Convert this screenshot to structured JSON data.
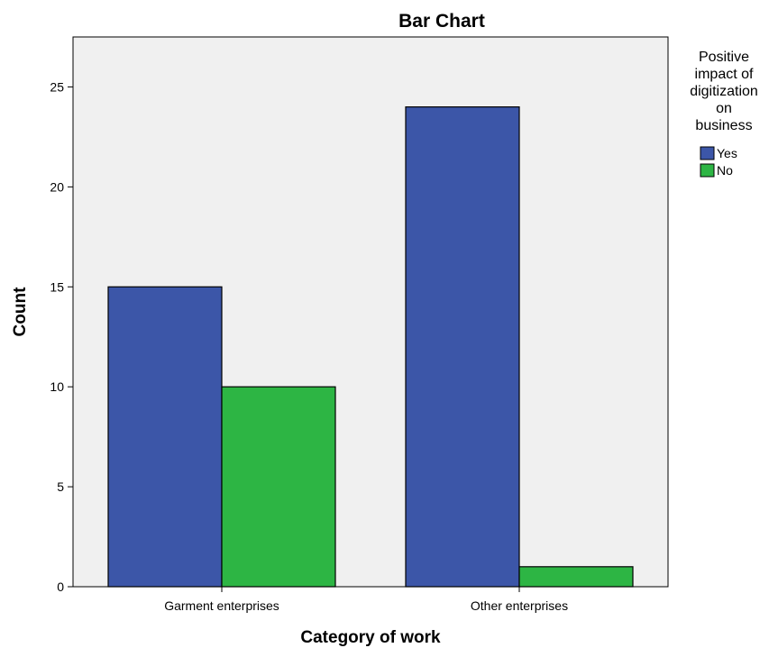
{
  "chart_data": {
    "type": "bar",
    "title": "Bar Chart",
    "xlabel": "Category of work",
    "ylabel": "Count",
    "categories": [
      "Garment enterprises",
      "Other enterprises"
    ],
    "series": [
      {
        "name": "Yes",
        "values": [
          15,
          24
        ],
        "color": "#3c56a8"
      },
      {
        "name": "No",
        "values": [
          10,
          1
        ],
        "color": "#2db544"
      }
    ],
    "ylim": [
      0,
      27.5
    ],
    "yticks": [
      0,
      5,
      10,
      15,
      20,
      25
    ],
    "grid": false,
    "legend": {
      "title_lines": [
        "Positive",
        "impact of",
        "digitization",
        "on",
        "business"
      ],
      "position": "right"
    },
    "plot_background": "#f0f0f0"
  }
}
